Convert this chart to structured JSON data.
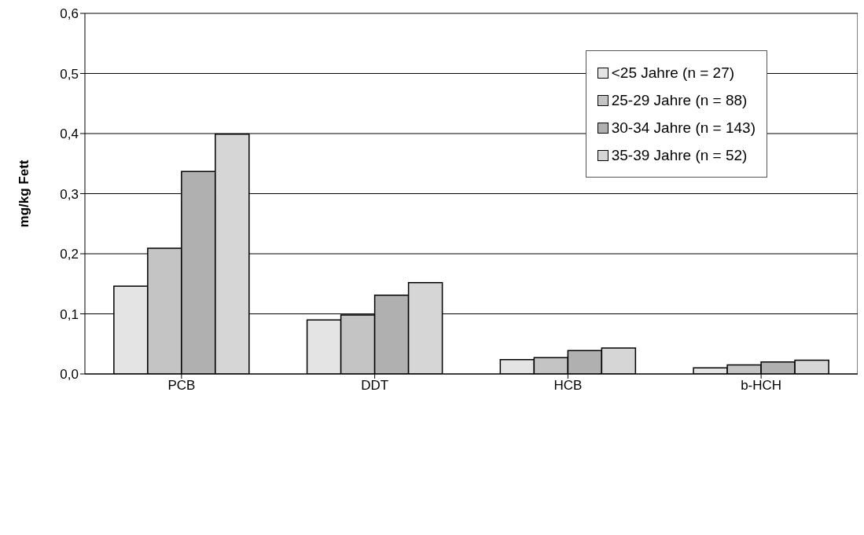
{
  "chart_data": {
    "type": "bar",
    "ylabel": "mg/kg Fett",
    "categories": [
      "PCB",
      "DDT",
      "HCB",
      "b-HCH"
    ],
    "series": [
      {
        "name": "<25 Jahre (n = 27)",
        "color": "#e4e4e4",
        "values": [
          0.146,
          0.09,
          0.024,
          0.01
        ]
      },
      {
        "name": "25-29 Jahre (n = 88)",
        "color": "#c4c4c4",
        "values": [
          0.209,
          0.098,
          0.027,
          0.015
        ]
      },
      {
        "name": "30-34 Jahre (n = 143)",
        "color": "#b0b0b0",
        "values": [
          0.337,
          0.131,
          0.039,
          0.02
        ]
      },
      {
        "name": "35-39 Jahre (n = 52)",
        "color": "#d6d6d6",
        "values": [
          0.399,
          0.152,
          0.043,
          0.023
        ]
      }
    ],
    "ylim": [
      0,
      0.6
    ],
    "yticks": [
      {
        "value": 0,
        "label": "0,0"
      },
      {
        "value": 0.1,
        "label": "0,1"
      },
      {
        "value": 0.2,
        "label": "0,2"
      },
      {
        "value": 0.3,
        "label": "0,3"
      },
      {
        "value": 0.4,
        "label": "0,4"
      },
      {
        "value": 0.5,
        "label": "0,5"
      },
      {
        "value": 0.6,
        "label": "0,6"
      }
    ],
    "grid": "y",
    "legend": "top right"
  }
}
